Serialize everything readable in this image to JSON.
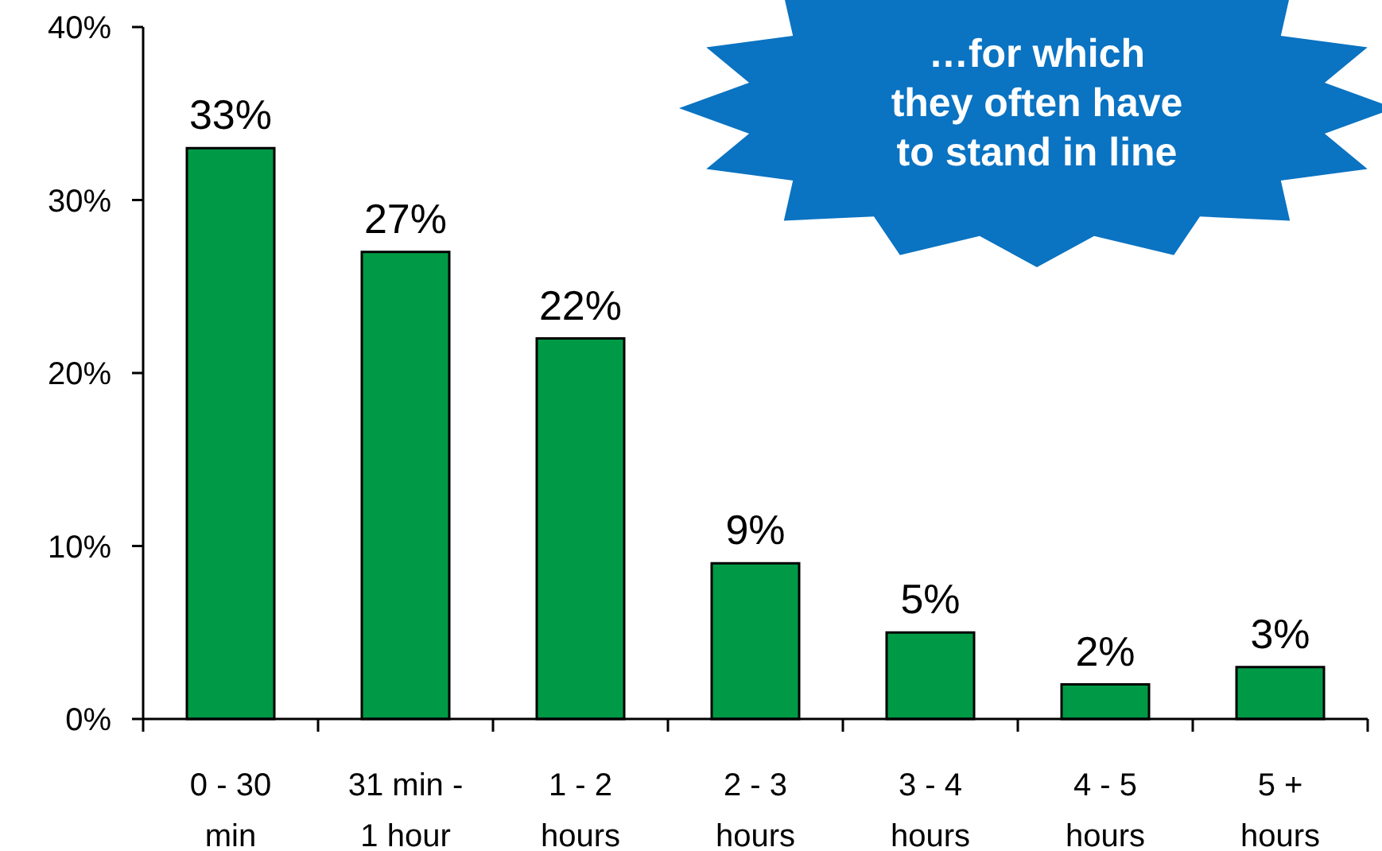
{
  "chart_data": {
    "type": "bar",
    "categories": [
      "0 - 30 min",
      "31 min - 1 hour",
      "1 - 2 hours",
      "2 - 3 hours",
      "3 - 4 hours",
      "4 - 5 hours",
      "5 + hours"
    ],
    "values": [
      33,
      27,
      22,
      9,
      5,
      2,
      3
    ],
    "color": "#009a46",
    "ylim": [
      0,
      40
    ],
    "yticks": [
      {
        "value": 0,
        "label": "0%"
      },
      {
        "value": 10,
        "label": "10%"
      },
      {
        "value": 20,
        "label": "20%"
      },
      {
        "value": 30,
        "label": "30%"
      },
      {
        "value": 40,
        "label": "40%"
      }
    ],
    "value_labels": [
      "33%",
      "27%",
      "22%",
      "9%",
      "5%",
      "2%",
      "3%"
    ],
    "annotations": [
      "…for which\nthey often have\nto stand in line"
    ],
    "grid": false
  }
}
